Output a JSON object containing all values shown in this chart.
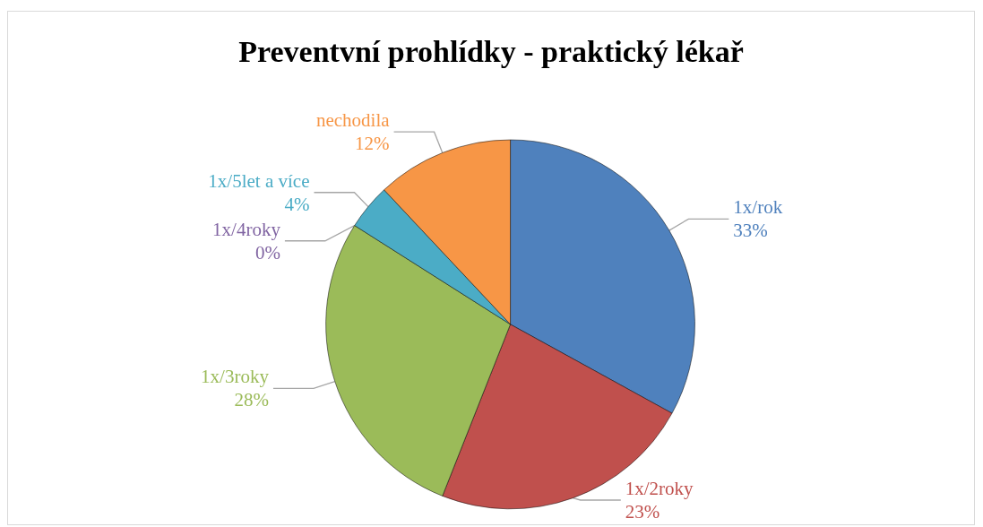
{
  "chart_data": {
    "type": "pie",
    "title": "Preventvní prohlídky - praktický lékař",
    "categories": [
      "1x/rok",
      "1x/2roky",
      "1x/3roky",
      "1x/4roky",
      "1x/5let a více",
      "nechodila"
    ],
    "values": [
      33,
      23,
      28,
      0,
      4,
      12
    ],
    "value_labels": [
      "33%",
      "23%",
      "28%",
      "0%",
      "4%",
      "12%"
    ],
    "colors": [
      "#4f81bd",
      "#c0504d",
      "#9bbb59",
      "#8064a2",
      "#4bacc6",
      "#f79646"
    ]
  }
}
